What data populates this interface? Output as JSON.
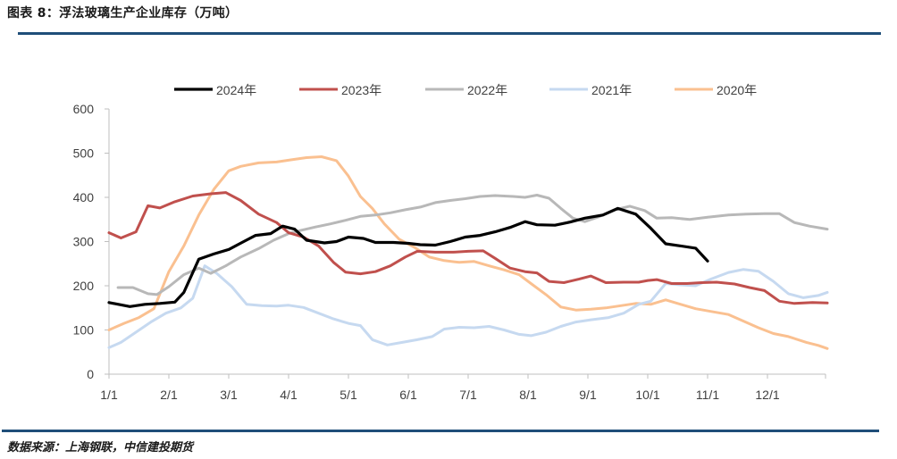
{
  "header": {
    "title": "图表 8：浮法玻璃生产企业库存（万吨）"
  },
  "footer": {
    "source": "数据来源：上海钢联，中信建投期货"
  },
  "chart_data": {
    "type": "line",
    "title": "",
    "xlabel": "",
    "ylabel": "",
    "ylim": [
      0,
      600
    ],
    "yticks": [
      0,
      100,
      200,
      300,
      400,
      500,
      600
    ],
    "xlim": [
      0,
      12.25
    ],
    "xticks": [
      {
        "value": 0,
        "label": "1/1"
      },
      {
        "value": 1,
        "label": "2/1"
      },
      {
        "value": 2,
        "label": "3/1"
      },
      {
        "value": 3,
        "label": "4/1"
      },
      {
        "value": 4,
        "label": "5/1"
      },
      {
        "value": 5,
        "label": "6/1"
      },
      {
        "value": 6,
        "label": "7/1"
      },
      {
        "value": 7,
        "label": "8/1"
      },
      {
        "value": 8,
        "label": "9/1"
      },
      {
        "value": 9,
        "label": "10/1"
      },
      {
        "value": 10,
        "label": "11/1"
      },
      {
        "value": 11,
        "label": "12/1"
      }
    ],
    "x_unit": "months since Jan 1",
    "grid": false,
    "legend_position": "top",
    "series": [
      {
        "name": "2024年",
        "color": "#000000",
        "width": 3.2,
        "points": [
          [
            0,
            162
          ],
          [
            0.35,
            153
          ],
          [
            0.6,
            158
          ],
          [
            0.85,
            160
          ],
          [
            1.1,
            163
          ],
          [
            1.25,
            185
          ],
          [
            1.5,
            260
          ],
          [
            1.75,
            272
          ],
          [
            2.0,
            282
          ],
          [
            2.25,
            300
          ],
          [
            2.45,
            314
          ],
          [
            2.7,
            318
          ],
          [
            2.9,
            335
          ],
          [
            3.1,
            328
          ],
          [
            3.3,
            303
          ],
          [
            3.6,
            297
          ],
          [
            3.8,
            300
          ],
          [
            4.0,
            310
          ],
          [
            4.25,
            307
          ],
          [
            4.45,
            298
          ],
          [
            4.75,
            298
          ],
          [
            5.0,
            296
          ],
          [
            5.2,
            293
          ],
          [
            5.45,
            292
          ],
          [
            5.7,
            300
          ],
          [
            5.95,
            310
          ],
          [
            6.2,
            314
          ],
          [
            6.45,
            322
          ],
          [
            6.7,
            332
          ],
          [
            6.95,
            345
          ],
          [
            7.15,
            338
          ],
          [
            7.45,
            337
          ],
          [
            7.7,
            344
          ],
          [
            7.95,
            353
          ],
          [
            8.25,
            360
          ],
          [
            8.5,
            375
          ],
          [
            8.8,
            362
          ],
          [
            9.05,
            330
          ],
          [
            9.3,
            295
          ],
          [
            9.55,
            290
          ],
          [
            9.8,
            285
          ],
          [
            10.0,
            256
          ]
        ]
      },
      {
        "name": "2023年",
        "color": "#c0504d",
        "width": 3,
        "points": [
          [
            0,
            320
          ],
          [
            0.2,
            308
          ],
          [
            0.45,
            322
          ],
          [
            0.65,
            381
          ],
          [
            0.85,
            376
          ],
          [
            1.1,
            390
          ],
          [
            1.4,
            403
          ],
          [
            1.7,
            408
          ],
          [
            1.95,
            411
          ],
          [
            2.2,
            393
          ],
          [
            2.5,
            362
          ],
          [
            2.8,
            343
          ],
          [
            3.0,
            320
          ],
          [
            3.25,
            310
          ],
          [
            3.5,
            290
          ],
          [
            3.75,
            253
          ],
          [
            3.95,
            231
          ],
          [
            4.2,
            227
          ],
          [
            4.45,
            232
          ],
          [
            4.7,
            245
          ],
          [
            4.95,
            265
          ],
          [
            5.15,
            278
          ],
          [
            5.45,
            276
          ],
          [
            5.75,
            276
          ],
          [
            6.0,
            278
          ],
          [
            6.25,
            279
          ],
          [
            6.45,
            262
          ],
          [
            6.7,
            240
          ],
          [
            6.95,
            232
          ],
          [
            7.15,
            229
          ],
          [
            7.35,
            210
          ],
          [
            7.6,
            207
          ],
          [
            7.85,
            215
          ],
          [
            8.05,
            222
          ],
          [
            8.3,
            207
          ],
          [
            8.6,
            208
          ],
          [
            8.85,
            208
          ],
          [
            9.0,
            212
          ],
          [
            9.15,
            214
          ],
          [
            9.4,
            205
          ],
          [
            9.65,
            205
          ],
          [
            9.9,
            207
          ],
          [
            10.15,
            208
          ],
          [
            10.45,
            204
          ],
          [
            10.7,
            196
          ],
          [
            10.95,
            189
          ],
          [
            11.2,
            165
          ],
          [
            11.45,
            160
          ],
          [
            11.75,
            162
          ],
          [
            12.0,
            161
          ]
        ]
      },
      {
        "name": "2022年",
        "color": "#b8b8b8",
        "width": 3,
        "points": [
          [
            0.15,
            196
          ],
          [
            0.4,
            196
          ],
          [
            0.65,
            182
          ],
          [
            0.8,
            180
          ],
          [
            1.0,
            198
          ],
          [
            1.25,
            225
          ],
          [
            1.5,
            240
          ],
          [
            1.7,
            228
          ],
          [
            1.95,
            245
          ],
          [
            2.2,
            265
          ],
          [
            2.5,
            284
          ],
          [
            2.75,
            303
          ],
          [
            3.0,
            318
          ],
          [
            3.2,
            325
          ],
          [
            3.45,
            333
          ],
          [
            3.7,
            340
          ],
          [
            3.95,
            348
          ],
          [
            4.2,
            357
          ],
          [
            4.45,
            360
          ],
          [
            4.7,
            365
          ],
          [
            4.95,
            372
          ],
          [
            5.2,
            378
          ],
          [
            5.45,
            388
          ],
          [
            5.7,
            393
          ],
          [
            5.95,
            397
          ],
          [
            6.2,
            402
          ],
          [
            6.45,
            404
          ],
          [
            6.75,
            402
          ],
          [
            6.95,
            400
          ],
          [
            7.15,
            405
          ],
          [
            7.35,
            398
          ],
          [
            7.55,
            375
          ],
          [
            7.75,
            353
          ],
          [
            7.95,
            345
          ],
          [
            8.2,
            357
          ],
          [
            8.45,
            372
          ],
          [
            8.7,
            380
          ],
          [
            8.95,
            370
          ],
          [
            9.15,
            353
          ],
          [
            9.4,
            354
          ],
          [
            9.7,
            350
          ],
          [
            10.0,
            355
          ],
          [
            10.35,
            360
          ],
          [
            10.65,
            362
          ],
          [
            10.95,
            363
          ],
          [
            11.2,
            363
          ],
          [
            11.45,
            343
          ],
          [
            11.7,
            335
          ],
          [
            12.0,
            328
          ]
        ]
      },
      {
        "name": "2021年",
        "color": "#c6d9f0",
        "width": 3,
        "points": [
          [
            0,
            60
          ],
          [
            0.2,
            72
          ],
          [
            0.45,
            95
          ],
          [
            0.7,
            118
          ],
          [
            0.95,
            138
          ],
          [
            1.2,
            150
          ],
          [
            1.4,
            172
          ],
          [
            1.6,
            245
          ],
          [
            1.8,
            228
          ],
          [
            2.05,
            198
          ],
          [
            2.3,
            158
          ],
          [
            2.55,
            155
          ],
          [
            2.8,
            154
          ],
          [
            3.0,
            156
          ],
          [
            3.25,
            151
          ],
          [
            3.5,
            138
          ],
          [
            3.75,
            125
          ],
          [
            4.0,
            115
          ],
          [
            4.2,
            110
          ],
          [
            4.4,
            78
          ],
          [
            4.65,
            66
          ],
          [
            4.9,
            72
          ],
          [
            5.15,
            78
          ],
          [
            5.4,
            85
          ],
          [
            5.6,
            102
          ],
          [
            5.85,
            106
          ],
          [
            6.1,
            105
          ],
          [
            6.35,
            108
          ],
          [
            6.6,
            100
          ],
          [
            6.85,
            90
          ],
          [
            7.05,
            87
          ],
          [
            7.3,
            95
          ],
          [
            7.55,
            108
          ],
          [
            7.8,
            118
          ],
          [
            8.05,
            123
          ],
          [
            8.35,
            128
          ],
          [
            8.6,
            138
          ],
          [
            8.85,
            158
          ],
          [
            9.05,
            165
          ],
          [
            9.3,
            205
          ],
          [
            9.55,
            202
          ],
          [
            9.8,
            200
          ],
          [
            10.05,
            215
          ],
          [
            10.35,
            230
          ],
          [
            10.6,
            237
          ],
          [
            10.85,
            233
          ],
          [
            11.1,
            210
          ],
          [
            11.35,
            182
          ],
          [
            11.6,
            173
          ],
          [
            11.85,
            178
          ],
          [
            12.0,
            185
          ]
        ]
      },
      {
        "name": "2020年",
        "color": "#fac090",
        "width": 3,
        "points": [
          [
            0,
            100
          ],
          [
            0.25,
            115
          ],
          [
            0.5,
            128
          ],
          [
            0.75,
            148
          ],
          [
            1.0,
            232
          ],
          [
            1.25,
            290
          ],
          [
            1.5,
            360
          ],
          [
            1.75,
            418
          ],
          [
            2.0,
            460
          ],
          [
            2.2,
            470
          ],
          [
            2.5,
            478
          ],
          [
            2.8,
            480
          ],
          [
            3.05,
            485
          ],
          [
            3.3,
            490
          ],
          [
            3.55,
            492
          ],
          [
            3.8,
            483
          ],
          [
            4.0,
            448
          ],
          [
            4.2,
            402
          ],
          [
            4.4,
            375
          ],
          [
            4.6,
            340
          ],
          [
            4.85,
            305
          ],
          [
            5.1,
            287
          ],
          [
            5.35,
            265
          ],
          [
            5.6,
            257
          ],
          [
            5.85,
            253
          ],
          [
            6.1,
            255
          ],
          [
            6.35,
            245
          ],
          [
            6.6,
            236
          ],
          [
            6.85,
            225
          ],
          [
            7.05,
            205
          ],
          [
            7.3,
            180
          ],
          [
            7.55,
            152
          ],
          [
            7.8,
            145
          ],
          [
            8.05,
            147
          ],
          [
            8.3,
            150
          ],
          [
            8.55,
            155
          ],
          [
            8.8,
            160
          ],
          [
            9.05,
            158
          ],
          [
            9.3,
            168
          ],
          [
            9.55,
            158
          ],
          [
            9.8,
            148
          ],
          [
            10.05,
            142
          ],
          [
            10.35,
            135
          ],
          [
            10.6,
            120
          ],
          [
            10.85,
            105
          ],
          [
            11.1,
            92
          ],
          [
            11.35,
            85
          ],
          [
            11.65,
            72
          ],
          [
            11.85,
            65
          ],
          [
            12.0,
            58
          ]
        ]
      }
    ]
  }
}
